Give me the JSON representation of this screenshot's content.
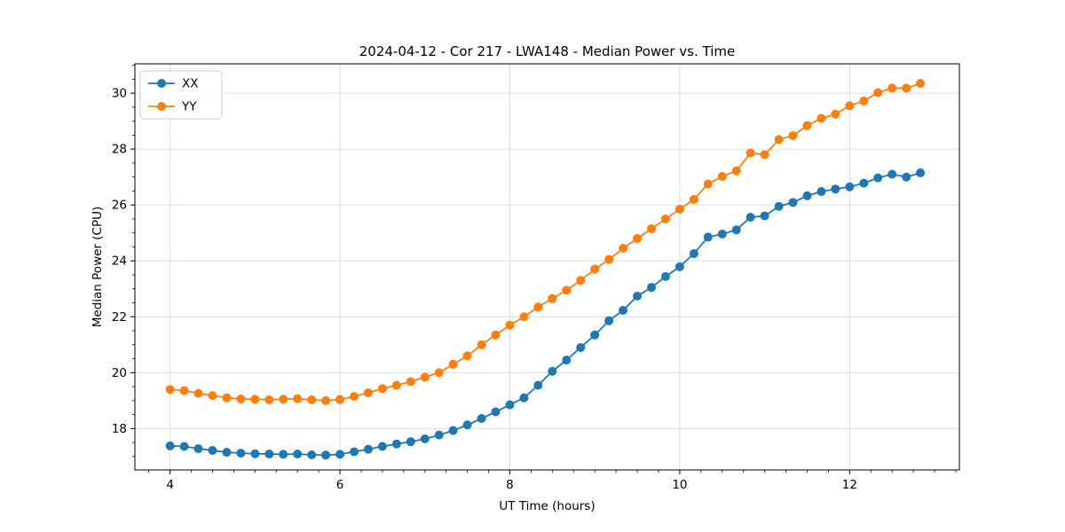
{
  "figure": {
    "background": "#ffffff"
  },
  "chart_data": {
    "type": "line",
    "title": "2024-04-12 - Cor 217 - LWA148 - Median Power vs. Time",
    "xlabel": "UT Time (hours)",
    "ylabel": "Median Power (CPU)",
    "xlim": [
      3.586,
      13.292
    ],
    "ylim": [
      16.52,
      31.05
    ],
    "x_ticks": [
      4,
      6,
      8,
      10,
      12
    ],
    "y_ticks": [
      18,
      20,
      22,
      24,
      26,
      28,
      30
    ],
    "x_minor_step": 0.25,
    "y_minor_step": 0.5,
    "grid": true,
    "grid_color": "#d9d9d9",
    "legend_position": "upper left",
    "x": [
      4.0,
      4.167,
      4.333,
      4.5,
      4.667,
      4.833,
      5.0,
      5.167,
      5.333,
      5.5,
      5.667,
      5.833,
      6.0,
      6.167,
      6.333,
      6.5,
      6.667,
      6.833,
      7.0,
      7.167,
      7.333,
      7.5,
      7.667,
      7.833,
      8.0,
      8.167,
      8.333,
      8.5,
      8.667,
      8.833,
      9.0,
      9.167,
      9.333,
      9.5,
      9.667,
      9.833,
      10.0,
      10.167,
      10.333,
      10.5,
      10.667,
      10.833,
      11.0,
      11.167,
      11.333,
      11.5,
      11.667,
      11.833,
      12.0,
      12.167,
      12.333,
      12.5,
      12.667,
      12.833
    ],
    "series": [
      {
        "name": "XX",
        "color": "#1f77b4",
        "marker": "circle",
        "values": [
          17.38,
          17.36,
          17.28,
          17.22,
          17.15,
          17.12,
          17.1,
          17.09,
          17.08,
          17.09,
          17.06,
          17.05,
          17.08,
          17.17,
          17.26,
          17.36,
          17.45,
          17.53,
          17.63,
          17.77,
          17.93,
          18.13,
          18.36,
          18.6,
          18.85,
          19.1,
          19.55,
          20.05,
          20.45,
          20.9,
          21.35,
          21.86,
          22.23,
          22.74,
          23.05,
          23.44,
          23.79,
          24.26,
          24.85,
          24.96,
          25.11,
          25.56,
          25.61,
          25.95,
          26.09,
          26.33,
          26.48,
          26.57,
          26.65,
          26.78,
          26.97,
          27.1,
          27.0,
          27.15
        ]
      },
      {
        "name": "YY",
        "color": "#ff7f0e",
        "marker": "circle",
        "values": [
          19.4,
          19.36,
          19.26,
          19.18,
          19.1,
          19.06,
          19.05,
          19.03,
          19.05,
          19.07,
          19.03,
          19.0,
          19.04,
          19.15,
          19.28,
          19.43,
          19.55,
          19.68,
          19.84,
          20.0,
          20.3,
          20.6,
          21.0,
          21.35,
          21.7,
          22.0,
          22.35,
          22.65,
          22.95,
          23.3,
          23.7,
          24.05,
          24.45,
          24.8,
          25.15,
          25.5,
          25.85,
          26.2,
          26.75,
          27.02,
          27.22,
          27.86,
          27.8,
          28.34,
          28.48,
          28.84,
          29.1,
          29.25,
          29.55,
          29.72,
          30.02,
          30.18,
          30.18,
          30.35
        ]
      }
    ]
  }
}
